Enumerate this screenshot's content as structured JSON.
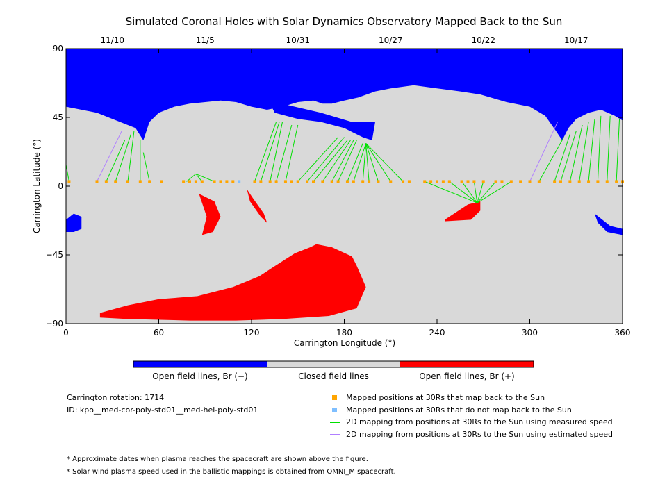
{
  "chart_data": {
    "type": "map",
    "title": "Simulated Coronal Holes with Solar Dynamics Observatory Mapped Back to the Sun",
    "xlabel": "Carrington Longitude (°)",
    "ylabel": "Carrington Latitude (°)",
    "xlim": [
      0,
      360
    ],
    "ylim": [
      -90,
      90
    ],
    "x_ticks": [
      0,
      60,
      120,
      180,
      240,
      300,
      360
    ],
    "y_ticks": [
      90,
      45,
      0,
      -45,
      -90
    ],
    "y_tick_labels": [
      "90",
      "45",
      "0",
      "−45",
      "−90"
    ],
    "top_date_ticks": [
      {
        "lon": 30,
        "label": "11/10"
      },
      {
        "lon": 90,
        "label": "11/5"
      },
      {
        "lon": 150,
        "label": "10/31"
      },
      {
        "lon": 210,
        "label": "10/27"
      },
      {
        "lon": 270,
        "label": "10/22"
      },
      {
        "lon": 330,
        "label": "10/17"
      }
    ],
    "colors": {
      "open_negative": "#0000ff",
      "closed": "#d9d9d9",
      "open_positive": "#ff0000",
      "mapped_ok": "#ffa500",
      "mapped_fail": "#7fbfff",
      "measured_speed": "#00e000",
      "estimated_speed": "#b07fff"
    },
    "regions": [
      {
        "polarity": "negative",
        "points": [
          [
            0,
            90
          ],
          [
            360,
            90
          ],
          [
            360,
            43
          ],
          [
            355,
            46
          ],
          [
            346,
            50
          ],
          [
            338,
            48
          ],
          [
            330,
            44
          ],
          [
            325,
            38
          ],
          [
            321,
            30
          ],
          [
            317,
            36
          ],
          [
            310,
            46
          ],
          [
            300,
            52
          ],
          [
            285,
            55
          ],
          [
            268,
            60
          ],
          [
            255,
            62
          ],
          [
            240,
            64
          ],
          [
            225,
            66
          ],
          [
            210,
            64
          ],
          [
            200,
            62
          ],
          [
            189,
            58
          ],
          [
            180,
            56
          ],
          [
            172,
            54
          ],
          [
            166,
            54
          ],
          [
            160,
            56
          ],
          [
            150,
            55
          ],
          [
            140,
            52
          ],
          [
            130,
            50
          ],
          [
            120,
            52
          ],
          [
            110,
            55
          ],
          [
            100,
            56
          ],
          [
            90,
            55
          ],
          [
            80,
            54
          ],
          [
            70,
            52
          ],
          [
            60,
            48
          ],
          [
            54,
            42
          ],
          [
            50,
            30
          ],
          [
            45,
            38
          ],
          [
            40,
            40
          ],
          [
            30,
            44
          ],
          [
            20,
            48
          ],
          [
            10,
            50
          ],
          [
            0,
            52
          ]
        ]
      },
      {
        "polarity": "negative",
        "points": [
          [
            131,
            56
          ],
          [
            148,
            52
          ],
          [
            165,
            48
          ],
          [
            185,
            42
          ],
          [
            200,
            42
          ],
          [
            198,
            30
          ],
          [
            192,
            32
          ],
          [
            180,
            38
          ],
          [
            165,
            42
          ],
          [
            150,
            44
          ],
          [
            135,
            48
          ]
        ]
      },
      {
        "polarity": "negative",
        "points": [
          [
            0,
            -22
          ],
          [
            5,
            -18
          ],
          [
            10,
            -20
          ],
          [
            10,
            -28
          ],
          [
            5,
            -30
          ],
          [
            0,
            -30
          ]
        ]
      },
      {
        "polarity": "negative",
        "points": [
          [
            342,
            -18
          ],
          [
            352,
            -26
          ],
          [
            360,
            -28
          ],
          [
            360,
            -32
          ],
          [
            350,
            -30
          ],
          [
            344,
            -24
          ]
        ]
      },
      {
        "polarity": "positive",
        "points": [
          [
            22,
            -83
          ],
          [
            40,
            -78
          ],
          [
            60,
            -74
          ],
          [
            85,
            -72
          ],
          [
            108,
            -66
          ],
          [
            125,
            -59
          ],
          [
            134,
            -53
          ],
          [
            148,
            -44
          ],
          [
            158,
            -40
          ],
          [
            162,
            -38
          ],
          [
            172,
            -40
          ],
          [
            185,
            -46
          ],
          [
            188,
            -52
          ],
          [
            194,
            -66
          ],
          [
            188,
            -80
          ],
          [
            170,
            -85
          ],
          [
            140,
            -87
          ],
          [
            110,
            -88
          ],
          [
            80,
            -88
          ],
          [
            40,
            -87
          ],
          [
            22,
            -86
          ]
        ]
      },
      {
        "polarity": "positive",
        "points": [
          [
            86,
            -5
          ],
          [
            96,
            -10
          ],
          [
            100,
            -20
          ],
          [
            95,
            -30
          ],
          [
            88,
            -32
          ],
          [
            91,
            -20
          ]
        ]
      },
      {
        "polarity": "positive",
        "points": [
          [
            117,
            -2
          ],
          [
            121,
            -8
          ],
          [
            128,
            -18
          ],
          [
            130,
            -24
          ],
          [
            126,
            -20
          ],
          [
            119,
            -10
          ]
        ]
      },
      {
        "polarity": "positive",
        "points": [
          [
            245,
            -22
          ],
          [
            260,
            -12
          ],
          [
            268,
            -10
          ],
          [
            268,
            -16
          ],
          [
            262,
            -22
          ],
          [
            245,
            -23
          ]
        ]
      }
    ],
    "series": [
      {
        "name": "Mapped positions at 30Rs that map back to the Sun",
        "lons": [
          2,
          20,
          26,
          32,
          40,
          48,
          54,
          62,
          76,
          80,
          84,
          88,
          96,
          100,
          104,
          108,
          122,
          126,
          132,
          136,
          142,
          146,
          150,
          156,
          160,
          166,
          172,
          176,
          182,
          186,
          192,
          196,
          202,
          210,
          218,
          222,
          232,
          236,
          240,
          244,
          248,
          256,
          260,
          264,
          270,
          278,
          282,
          288,
          294,
          300,
          306,
          316,
          320,
          326,
          332,
          338,
          344,
          350,
          356,
          360
        ]
      },
      {
        "name": "Mapped positions at 30Rs that do not map back to the Sun",
        "lons": [
          112
        ]
      },
      {
        "name": "2D mapping from positions at 30Rs to the Sun using measured speed",
        "segments": [
          [
            [
              2,
              3
            ],
            [
              0,
              14
            ]
          ],
          [
            [
              26,
              3
            ],
            [
              38,
              30
            ]
          ],
          [
            [
              32,
              3
            ],
            [
              42,
              34
            ]
          ],
          [
            [
              40,
              3
            ],
            [
              44,
              36
            ]
          ],
          [
            [
              48,
              3
            ],
            [
              48,
              30
            ]
          ],
          [
            [
              54,
              3
            ],
            [
              50,
              22
            ]
          ],
          [
            [
              78,
              3
            ],
            [
              84,
              8
            ]
          ],
          [
            [
              88,
              3
            ],
            [
              84,
              8
            ]
          ],
          [
            [
              96,
              3
            ],
            [
              84,
              8
            ]
          ],
          [
            [
              122,
              3
            ],
            [
              136,
              42
            ]
          ],
          [
            [
              126,
              3
            ],
            [
              138,
              42
            ]
          ],
          [
            [
              132,
              3
            ],
            [
              140,
              42
            ]
          ],
          [
            [
              136,
              3
            ],
            [
              146,
              40
            ]
          ],
          [
            [
              142,
              3
            ],
            [
              150,
              40
            ]
          ],
          [
            [
              150,
              3
            ],
            [
              176,
              32
            ]
          ],
          [
            [
              156,
              3
            ],
            [
              180,
              32
            ]
          ],
          [
            [
              160,
              3
            ],
            [
              182,
              30
            ]
          ],
          [
            [
              166,
              3
            ],
            [
              184,
              30
            ]
          ],
          [
            [
              172,
              3
            ],
            [
              186,
              30
            ]
          ],
          [
            [
              176,
              3
            ],
            [
              188,
              30
            ]
          ],
          [
            [
              182,
              3
            ],
            [
              192,
              28
            ]
          ],
          [
            [
              186,
              3
            ],
            [
              194,
              28
            ]
          ],
          [
            [
              192,
              3
            ],
            [
              194,
              28
            ]
          ],
          [
            [
              196,
              3
            ],
            [
              194,
              28
            ]
          ],
          [
            [
              202,
              3
            ],
            [
              194,
              28
            ]
          ],
          [
            [
              210,
              3
            ],
            [
              194,
              28
            ]
          ],
          [
            [
              218,
              3
            ],
            [
              194,
              28
            ]
          ],
          [
            [
              232,
              3
            ],
            [
              266,
              -11
            ]
          ],
          [
            [
              248,
              3
            ],
            [
              266,
              -11
            ]
          ],
          [
            [
              256,
              3
            ],
            [
              266,
              -11
            ]
          ],
          [
            [
              264,
              3
            ],
            [
              266,
              -11
            ]
          ],
          [
            [
              270,
              3
            ],
            [
              266,
              -11
            ]
          ],
          [
            [
              278,
              3
            ],
            [
              266,
              -11
            ]
          ],
          [
            [
              288,
              3
            ],
            [
              266,
              -11
            ]
          ],
          [
            [
              306,
              3
            ],
            [
              322,
              32
            ]
          ],
          [
            [
              316,
              3
            ],
            [
              326,
              34
            ]
          ],
          [
            [
              320,
              3
            ],
            [
              330,
              36
            ]
          ],
          [
            [
              326,
              3
            ],
            [
              334,
              40
            ]
          ],
          [
            [
              332,
              3
            ],
            [
              338,
              42
            ]
          ],
          [
            [
              338,
              3
            ],
            [
              342,
              44
            ]
          ],
          [
            [
              344,
              3
            ],
            [
              346,
              46
            ]
          ],
          [
            [
              350,
              3
            ],
            [
              352,
              46
            ]
          ],
          [
            [
              356,
              3
            ],
            [
              358,
              44
            ]
          ]
        ]
      },
      {
        "name": "2D mapping from positions at 30Rs to the Sun using estimated speed",
        "segments": [
          [
            [
              20,
              3
            ],
            [
              36,
              36
            ]
          ],
          [
            [
              300,
              3
            ],
            [
              318,
              42
            ]
          ]
        ]
      }
    ],
    "colorbar": {
      "labels": [
        "Open field lines, Br (−)",
        "Closed field lines",
        "Open field lines, Br (+)"
      ]
    }
  },
  "info": {
    "carrington_rotation": "Carrington rotation: 1714",
    "id": "ID: kpo__med-cor-poly-std01__med-hel-poly-std01"
  },
  "notes": [
    "* Approximate dates when plasma reaches the spacecraft are shown above the figure.",
    "* Solar wind plasma speed used in the ballistic mappings is obtained from OMNI_M spacecraft."
  ]
}
